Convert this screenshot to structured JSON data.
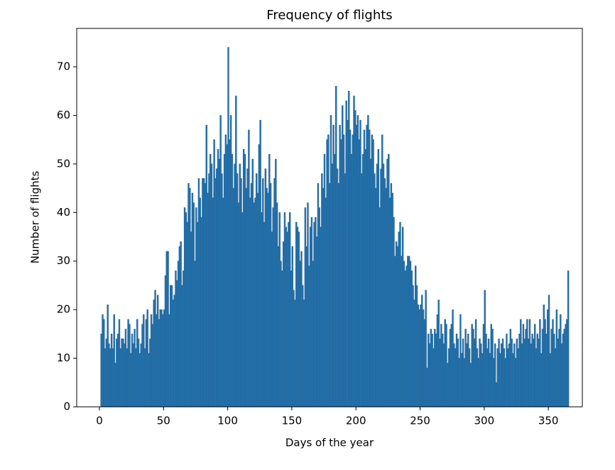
{
  "chart_data": {
    "type": "histogram",
    "title": "Frequency of flights",
    "xlabel": "Days of the year",
    "ylabel": "Number of flights",
    "color": "#1f77b4",
    "edgecolor": "#2a5f8f",
    "bins": [
      1,
      2,
      3,
      4,
      5,
      6,
      7,
      8,
      9,
      10,
      11,
      12,
      13,
      14,
      15,
      16,
      17,
      18,
      19,
      20,
      21,
      22,
      23,
      24,
      25,
      26,
      27,
      28,
      29,
      30,
      31,
      32,
      33,
      34,
      35,
      36,
      37,
      38,
      39,
      40,
      41,
      42,
      43,
      44,
      45,
      46,
      47,
      48,
      49,
      50,
      51,
      52,
      53,
      54,
      55,
      56,
      57,
      58,
      59,
      60,
      61,
      62,
      63,
      64,
      65,
      66,
      67,
      68,
      69,
      70,
      71,
      72,
      73,
      74,
      75,
      76,
      77,
      78,
      79,
      80,
      81,
      82,
      83,
      84,
      85,
      86,
      87,
      88,
      89,
      90,
      91,
      92,
      93,
      94,
      95,
      96,
      97,
      98,
      99,
      100,
      101,
      102,
      103,
      104,
      105,
      106,
      107,
      108,
      109,
      110,
      111,
      112,
      113,
      114,
      115,
      116,
      117,
      118,
      119,
      120,
      121,
      122,
      123,
      124,
      125,
      126,
      127,
      128,
      129,
      130,
      131,
      132,
      133,
      134,
      135,
      136,
      137,
      138,
      139,
      140,
      141,
      142,
      143,
      144,
      145,
      146,
      147,
      148,
      149,
      150,
      151,
      152,
      153,
      154,
      155,
      156,
      157,
      158,
      159,
      160,
      161,
      162,
      163,
      164,
      165,
      166,
      167,
      168,
      169,
      170,
      171,
      172,
      173,
      174,
      175,
      176,
      177,
      178,
      179,
      180,
      181,
      182,
      183,
      184,
      185,
      186,
      187,
      188,
      189,
      190,
      191,
      192,
      193,
      194,
      195,
      196,
      197,
      198,
      199,
      200,
      201,
      202,
      203,
      204,
      205,
      206,
      207,
      208,
      209,
      210,
      211,
      212,
      213,
      214,
      215,
      216,
      217,
      218,
      219,
      220,
      221,
      222,
      223,
      224,
      225,
      226,
      227,
      228,
      229,
      230,
      231,
      232,
      233,
      234,
      235,
      236,
      237,
      238,
      239,
      240,
      241,
      242,
      243,
      244,
      245,
      246,
      247,
      248,
      249,
      250,
      251,
      252,
      253,
      254,
      255,
      256,
      257,
      258,
      259,
      260,
      261,
      262,
      263,
      264,
      265,
      266,
      267,
      268,
      269,
      270,
      271,
      272,
      273,
      274,
      275,
      276,
      277,
      278,
      279,
      280,
      281,
      282,
      283,
      284,
      285,
      286,
      287,
      288,
      289,
      290,
      291,
      292,
      293,
      294,
      295,
      296,
      297,
      298,
      299,
      300,
      301,
      302,
      303,
      304,
      305,
      306,
      307,
      308,
      309,
      310,
      311,
      312,
      313,
      314,
      315,
      316,
      317,
      318,
      319,
      320,
      321,
      322,
      323,
      324,
      325,
      326,
      327,
      328,
      329,
      330,
      331,
      332,
      333,
      334,
      335,
      336,
      337,
      338,
      339,
      340,
      341,
      342,
      343,
      344,
      345,
      346,
      347,
      348,
      349,
      350,
      351,
      352,
      353,
      354,
      355,
      356,
      357,
      358,
      359,
      360,
      361,
      362,
      363,
      364,
      365,
      366
    ],
    "values": [
      15,
      19,
      18,
      12,
      14,
      21,
      13,
      12,
      15,
      12,
      19,
      9,
      14,
      15,
      18,
      12,
      14,
      14,
      13,
      16,
      12,
      18,
      17,
      11,
      15,
      13,
      16,
      12,
      18,
      14,
      11,
      13,
      17,
      19,
      12,
      18,
      20,
      11,
      14,
      19,
      17,
      22,
      24,
      19,
      23,
      18,
      20,
      20,
      19,
      20,
      27,
      32,
      32,
      19,
      25,
      25,
      22,
      23,
      28,
      26,
      30,
      33,
      34,
      25,
      28,
      41,
      40,
      38,
      46,
      45,
      36,
      44,
      42,
      30,
      41,
      38,
      47,
      43,
      39,
      47,
      47,
      46,
      58,
      44,
      48,
      52,
      50,
      43,
      55,
      47,
      49,
      53,
      51,
      60,
      48,
      43,
      52,
      56,
      54,
      74,
      55,
      60,
      52,
      45,
      50,
      64,
      48,
      42,
      50,
      47,
      40,
      53,
      52,
      45,
      49,
      57,
      43,
      46,
      51,
      42,
      43,
      48,
      44,
      54,
      59,
      40,
      47,
      38,
      49,
      45,
      44,
      52,
      46,
      36,
      41,
      47,
      51,
      42,
      33,
      40,
      30,
      28,
      34,
      40,
      37,
      36,
      38,
      40,
      28,
      33,
      24,
      22,
      38,
      37,
      36,
      30,
      32,
      25,
      22,
      41,
      33,
      42,
      29,
      37,
      39,
      30,
      38,
      39,
      35,
      46,
      41,
      37,
      48,
      45,
      52,
      43,
      55,
      56,
      46,
      60,
      50,
      58,
      52,
      66,
      49,
      46,
      58,
      55,
      62,
      56,
      48,
      63,
      59,
      65,
      57,
      52,
      56,
      64,
      61,
      58,
      60,
      55,
      59,
      48,
      52,
      57,
      53,
      58,
      60,
      57,
      51,
      56,
      55,
      48,
      45,
      50,
      53,
      41,
      49,
      56,
      50,
      47,
      45,
      51,
      52,
      43,
      46,
      44,
      39,
      31,
      34,
      33,
      36,
      38,
      31,
      37,
      30,
      28,
      29,
      31,
      31,
      30,
      28,
      25,
      22,
      29,
      25,
      21,
      20,
      21,
      23,
      20,
      18,
      24,
      8,
      15,
      13,
      16,
      15,
      12,
      16,
      15,
      19,
      22,
      14,
      17,
      15,
      13,
      18,
      17,
      9,
      12,
      16,
      17,
      20,
      13,
      12,
      15,
      14,
      10,
      19,
      11,
      14,
      10,
      16,
      13,
      15,
      12,
      9,
      17,
      16,
      14,
      18,
      12,
      10,
      14,
      13,
      11,
      17,
      24,
      15,
      12,
      14,
      11,
      17,
      16,
      10,
      13,
      5,
      12,
      14,
      11,
      13,
      14,
      12,
      10,
      15,
      12,
      13,
      16,
      14,
      11,
      13,
      10,
      14,
      12,
      15,
      18,
      13,
      17,
      14,
      16,
      18,
      14,
      18,
      13,
      15,
      14,
      17,
      12,
      15,
      14,
      18,
      11,
      16,
      21,
      18,
      15,
      20,
      23,
      11,
      16,
      18,
      15,
      12,
      20,
      14,
      16,
      19,
      13,
      15,
      16,
      17,
      18,
      28
    ],
    "xlim": [
      -17.7,
      376.5
    ],
    "ylim": [
      0,
      77.9
    ],
    "xticks": [
      0,
      50,
      100,
      150,
      200,
      250,
      300,
      350
    ],
    "yticks": [
      0,
      10,
      20,
      30,
      40,
      50,
      60,
      70
    ]
  }
}
